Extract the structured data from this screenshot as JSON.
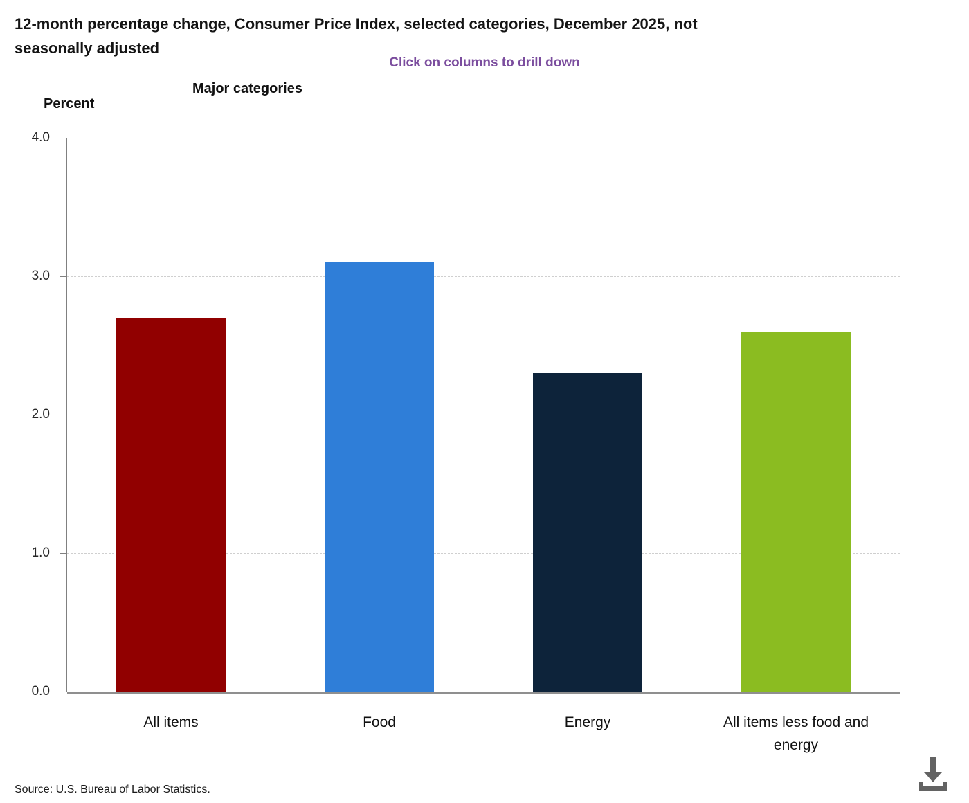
{
  "header": {
    "title_line1": "12-month percentage change, Consumer Price Index, selected categories, December 2025, not",
    "title_line2": "seasonally adjusted",
    "subtitle": "Click on columns to drill down",
    "subtitle_color": "#7b4d9e"
  },
  "chart_data": {
    "type": "bar",
    "title": "Major categories",
    "ylabel": "Percent",
    "categories": [
      "All items",
      "Food",
      "Energy",
      "All items less food and energy"
    ],
    "values": [
      2.7,
      3.1,
      2.3,
      2.6
    ],
    "bar_colors": [
      "#910000",
      "#2f7ed8",
      "#0d233a",
      "#8bbc21"
    ],
    "ylim": [
      0,
      4
    ],
    "yticks": [
      0,
      1,
      2,
      3,
      4
    ],
    "ytick_labels": [
      "0.0",
      "1.0",
      "2.0",
      "3.0",
      "4.0"
    ],
    "grid": "horizontal-dashed",
    "legend": "none",
    "note": "columns are clickable to drill down"
  },
  "footer": {
    "source": "Source: U.S. Bureau of Labor Statistics.",
    "download_icon": "download-icon"
  }
}
